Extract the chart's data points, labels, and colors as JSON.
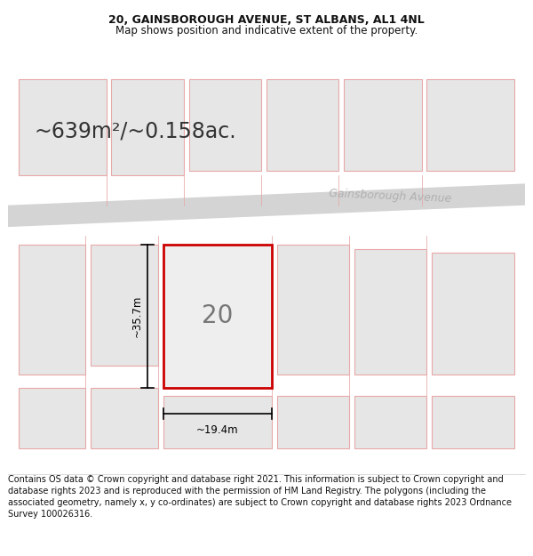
{
  "title_line1": "20, GAINSBOROUGH AVENUE, ST ALBANS, AL1 4NL",
  "title_line2": "Map shows position and indicative extent of the property.",
  "area_text": "~639m²/~0.158ac.",
  "street_name": "Gainsborough Avenue",
  "plot_number": "20",
  "width_label": "~19.4m",
  "height_label": "~35.7m",
  "footer_text": "Contains OS data © Crown copyright and database right 2021. This information is subject to Crown copyright and database rights 2023 and is reproduced with the permission of HM Land Registry. The polygons (including the associated geometry, namely x, y co-ordinates) are subject to Crown copyright and database rights 2023 Ordnance Survey 100026316.",
  "bg_color": "#ffffff",
  "map_bg": "#f7f7f7",
  "plot_fill": "#eeeeee",
  "plot_border": "#cc0000",
  "neighbor_fill": "#e6e6e6",
  "neighbor_border": "#e8a8a8",
  "road_color": "#d4d4d4",
  "dim_line_color": "#000000",
  "title_fontsize": 9,
  "subtitle_fontsize": 8.5,
  "area_fontsize": 17,
  "street_fontsize": 9,
  "plot_num_fontsize": 20,
  "dim_fontsize": 8.5,
  "footer_fontsize": 7
}
